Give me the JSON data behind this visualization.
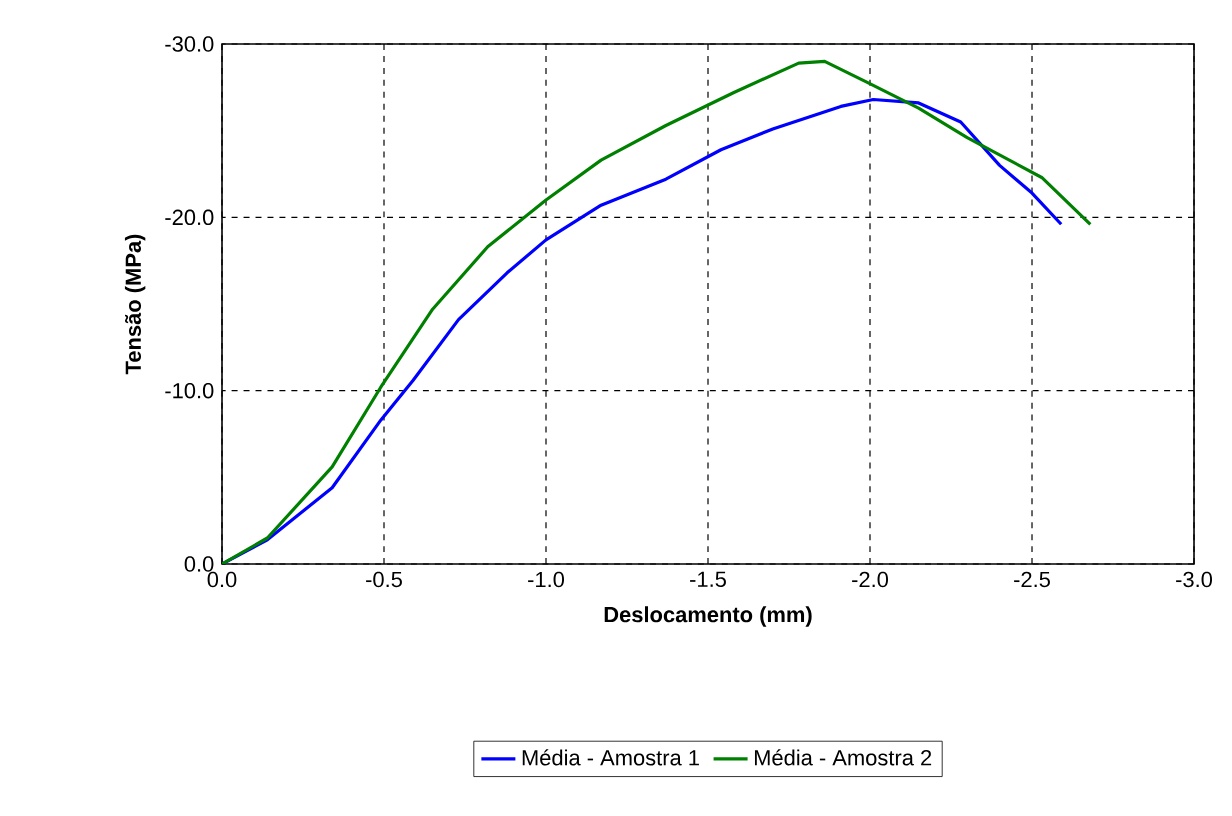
{
  "chart_data": {
    "type": "line",
    "xlabel": "Deslocamento (mm)",
    "ylabel": "Tensão (MPa)",
    "xlim": [
      0,
      -3
    ],
    "ylim": [
      0,
      -30
    ],
    "xticks": [
      {
        "value": 0,
        "label": "0.0"
      },
      {
        "value": -0.5,
        "label": "-0.5"
      },
      {
        "value": -1,
        "label": "-1.0"
      },
      {
        "value": -1.5,
        "label": "-1.5"
      },
      {
        "value": -2,
        "label": "-2.0"
      },
      {
        "value": -2.5,
        "label": "-2.5"
      },
      {
        "value": -3,
        "label": "-3.0"
      }
    ],
    "yticks": [
      {
        "value": 0,
        "label": "0.0"
      },
      {
        "value": -10,
        "label": "-10.0"
      },
      {
        "value": -20,
        "label": "-20.0"
      },
      {
        "value": -30,
        "label": "-30.0"
      }
    ],
    "grid": true,
    "legend": "bottom",
    "line_style": "solid",
    "marker": "none",
    "series": [
      {
        "name": "Média - Amostra 1",
        "color": "#0000ff",
        "x": [
          0,
          -0.14,
          -0.34,
          -0.49,
          -0.59,
          -0.73,
          -0.88,
          -1.0,
          -1.17,
          -1.37,
          -1.54,
          -1.7,
          -1.91,
          -2.01,
          -2.15,
          -2.28,
          -2.4,
          -2.5,
          -2.59
        ],
        "values": [
          0,
          -1.4,
          -4.4,
          -8.3,
          -10.6,
          -14.1,
          -16.8,
          -18.7,
          -20.7,
          -22.2,
          -23.9,
          -25.1,
          -26.4,
          -26.8,
          -26.6,
          -25.5,
          -23.0,
          -21.4,
          -19.6
        ]
      },
      {
        "name": "Média - Amostra 2",
        "color": "#008000",
        "x": [
          0,
          -0.14,
          -0.34,
          -0.49,
          -0.65,
          -0.82,
          -1.0,
          -1.17,
          -1.37,
          -1.58,
          -1.78,
          -1.86,
          -1.99,
          -2.15,
          -2.3,
          -2.53,
          -2.68
        ],
        "values": [
          0,
          -1.5,
          -5.6,
          -10.2,
          -14.7,
          -18.3,
          -21.0,
          -23.3,
          -25.3,
          -27.2,
          -28.9,
          -29.0,
          -27.8,
          -26.3,
          -24.6,
          -22.3,
          -19.6
        ]
      }
    ]
  }
}
